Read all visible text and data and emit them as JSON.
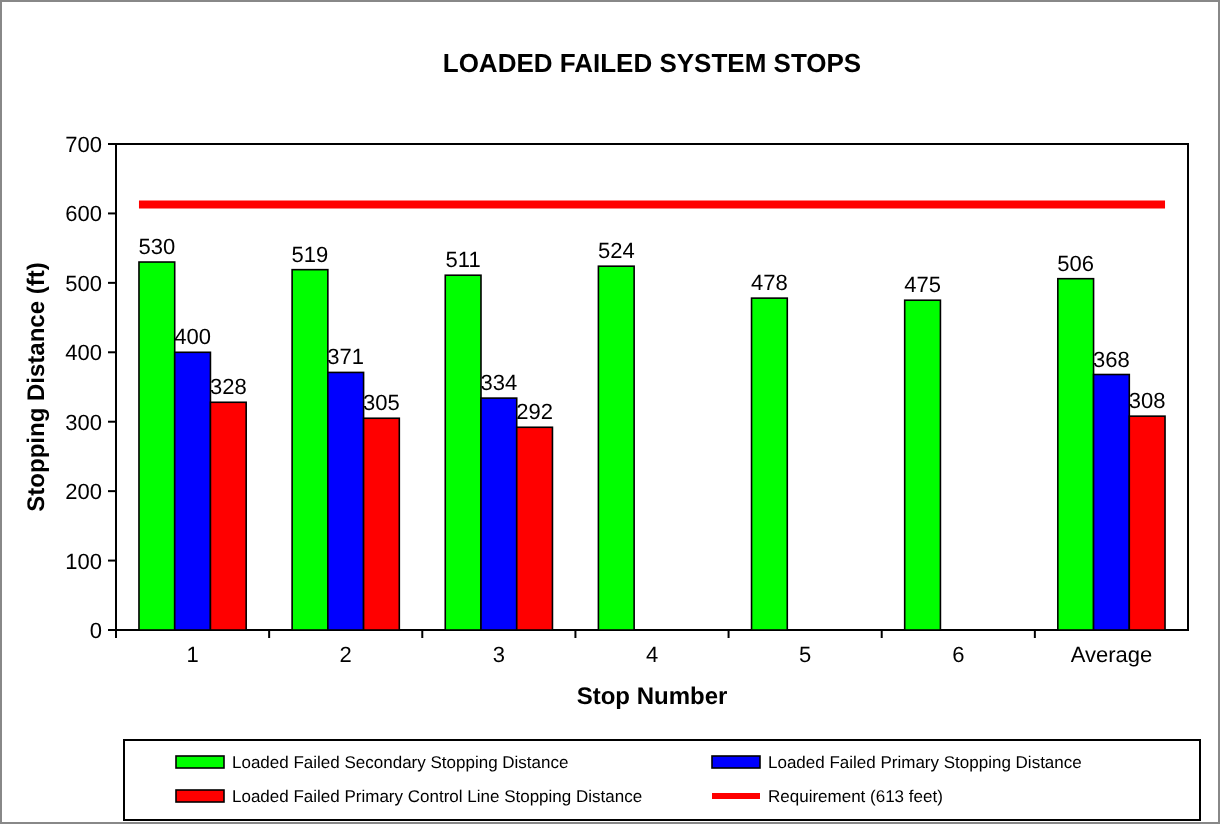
{
  "chart_data": {
    "type": "bar",
    "title": "LOADED FAILED SYSTEM STOPS",
    "xlabel": "Stop Number",
    "ylabel": "Stopping Distance (ft)",
    "categories": [
      "1",
      "2",
      "3",
      "4",
      "5",
      "6",
      "Average"
    ],
    "series": [
      {
        "name": "Loaded Failed Secondary Stopping Distance",
        "color": "#00ff00",
        "values": [
          530,
          519,
          511,
          524,
          478,
          475,
          506
        ]
      },
      {
        "name": "Loaded Failed Primary Stopping Distance",
        "color": "#0000ff",
        "values": [
          400,
          371,
          334,
          null,
          null,
          null,
          368
        ]
      },
      {
        "name": "Loaded Failed Primary Control Line Stopping Distance",
        "color": "#ff0000",
        "values": [
          328,
          305,
          292,
          null,
          null,
          null,
          308
        ]
      }
    ],
    "ref_lines": [
      {
        "axis": "y",
        "value": 613,
        "label": "Requirement (613 feet)",
        "color": "#ff0000"
      }
    ],
    "ylim": [
      0,
      700
    ],
    "yticks": [
      0,
      100,
      200,
      300,
      400,
      500,
      600,
      700
    ],
    "grid": false,
    "legend": "bottom",
    "data_labels": true
  }
}
